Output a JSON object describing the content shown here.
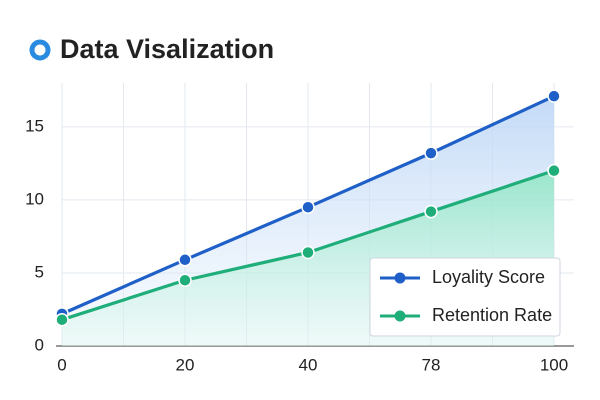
{
  "chart_data": {
    "type": "line",
    "title": "Data Visalization",
    "categories": [
      "0",
      "20",
      "40",
      "78",
      "100"
    ],
    "series": [
      {
        "name": "Loyality Score",
        "color": "#1e5fc8",
        "values": [
          2.2,
          5.9,
          9.5,
          13.2,
          17.1
        ]
      },
      {
        "name": "Retention Rate",
        "color": "#1fae7a",
        "values": [
          1.8,
          4.5,
          6.4,
          9.2,
          12.0
        ]
      }
    ],
    "ylim": [
      0,
      18
    ],
    "yticks": [
      0,
      5,
      10,
      15
    ],
    "grid": true,
    "legend": "lower-right"
  }
}
